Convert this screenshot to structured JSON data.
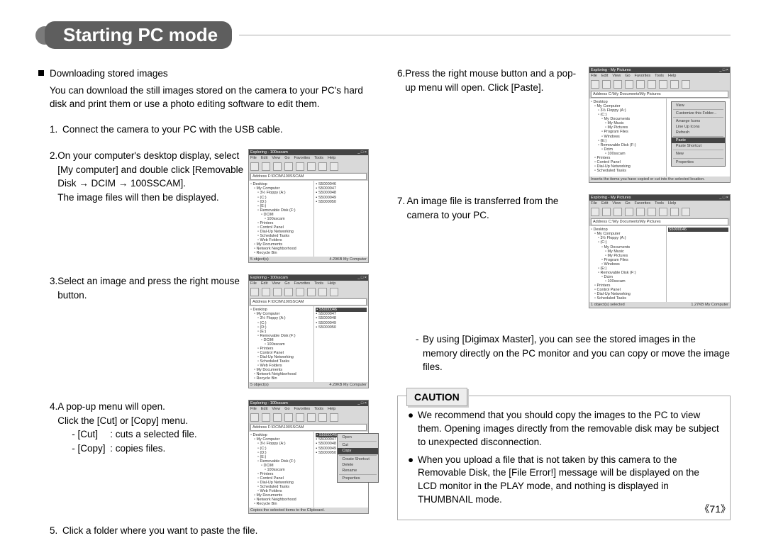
{
  "title": "Starting PC mode",
  "section_header": "Downloading stored images",
  "intro": "You can download the still images stored on the camera to your PC's hard disk and print them or use a photo editing software to edit them.",
  "step1": "Connect the camera to your PC with the USB cable.",
  "step2_a": "On your computer's desktop display, select [My computer] and double click [Removable Disk → DCIM → 100SSCAM].",
  "step2_b": "The image files will then be displayed.",
  "step3": "Select an image and press the right mouse button.",
  "step4_a": "A pop-up menu will open.",
  "step4_b": "Click the [Cut] or [Copy] menu.",
  "step4_cut_l": "- [Cut]",
  "step4_cut_r": ": cuts a selected file.",
  "step4_copy_l": "- [Copy]",
  "step4_copy_r": ": copies files.",
  "step5": "Click a folder where you want to paste the file.",
  "step6": "Press the right mouse button and a pop-up menu will open. Click [Paste].",
  "step7": "An image file is transferred from the camera to your PC.",
  "note1": "By using [Digimax Master], you can see the stored images in the memory directly on the PC monitor and you can copy or move the image files.",
  "caution_label": "CAUTION",
  "caution1": "We recommend that you should copy the images to the PC to view them. Opening images directly from the removable disk may be subject to unexpected disconnection.",
  "caution2": "When you upload a file that is not taken by this camera to the Removable Disk, the [File Error!] message will be displayed on the LCD monitor in the PLAY mode, and nothing is displayed in THUMBNAIL mode.",
  "page": "《71》",
  "shot": {
    "title2": "Exploring - 100sscam",
    "title6": "Exploring - My Pictures",
    "menu": [
      "File",
      "Edit",
      "View",
      "Go",
      "Favorites",
      "Tools",
      "Help"
    ],
    "addr2": "F:\\DCIM\\100SSCAM",
    "addr6": "C:\\My Documents\\My Pictures",
    "tree2": [
      "Desktop",
      " My Computer",
      "  3½ Floppy (A:)",
      "  (C:)",
      "  (D:)",
      "  (E:)",
      "  Removable Disk (F:)",
      "   DCIM",
      "    100sscam",
      "  Printers",
      "  Control Panel",
      "  Dial-Up Networking",
      "  Scheduled Tasks",
      "  Web Folders",
      " My Documents",
      " Network Neighborhood",
      " Recycle Bin"
    ],
    "tree6": [
      "Desktop",
      " My Computer",
      "  3½ Floppy (A:)",
      "  (C:)",
      "   My Documents",
      "    My Music",
      "    My Pictures",
      "   Program Files",
      "   Windows",
      "  (E:)",
      "  Removable Disk (F:)",
      "   Dcim",
      "    100sscam",
      " Printers",
      " Control Panel",
      " Dial-Up Networking",
      " Scheduled Tasks"
    ],
    "files": [
      "S5000046",
      "S5000047",
      "S5000048",
      "S5000049",
      "S5000050"
    ],
    "ctx3": [
      "Open",
      "Cut",
      "Copy",
      "Create Shortcut",
      "Delete",
      "Rename",
      "Properties"
    ],
    "ctx4": [
      "Open",
      "Cut",
      "Copy",
      "Create Shortcut",
      "Delete",
      "Rename",
      "Properties"
    ],
    "ctx6": [
      "View",
      "Customize this Folder...",
      "Arrange Icons",
      "Line Up Icons",
      "Refresh",
      "Paste",
      "Paste Shortcut",
      "New",
      "Properties"
    ],
    "status_left": "5 object(s)",
    "status_left6": "1 object(s) selected",
    "status_right": "My Computer",
    "status_size": "4.29KB",
    "status_size6": "1.27KB"
  }
}
